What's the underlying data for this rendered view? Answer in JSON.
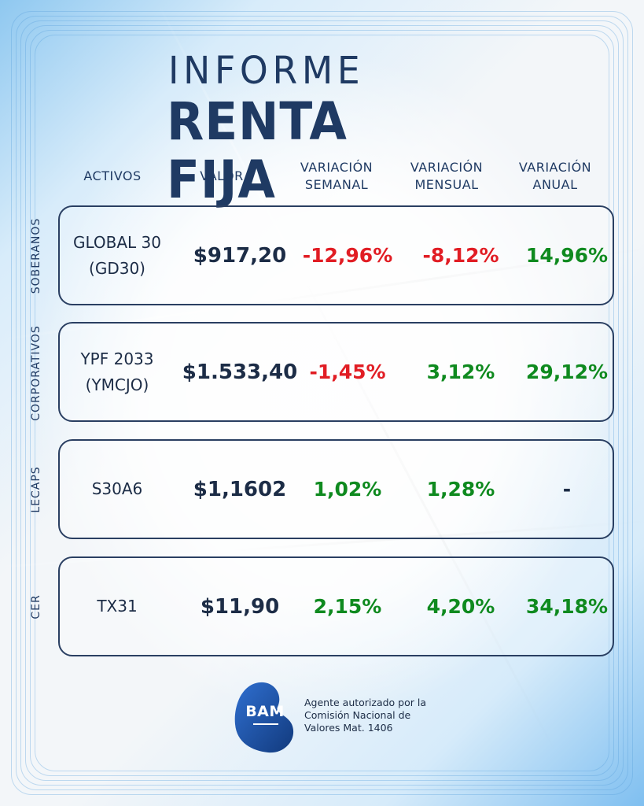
{
  "title": {
    "line1": "INFORME",
    "line2": "RENTA FIJA"
  },
  "headers": {
    "activos": "ACTIVOS",
    "valor": "VALOR",
    "semanal": [
      "VARIACIÓN",
      "SEMANAL"
    ],
    "mensual": [
      "VARIACIÓN",
      "MENSUAL"
    ],
    "anual": [
      "VARIACIÓN",
      "ANUAL"
    ]
  },
  "rows": [
    {
      "category": "SOBERANOS",
      "asset": [
        "GLOBAL 30",
        "(GD30)"
      ],
      "value": "$917,20",
      "semanal": "-12,96%",
      "mensual": "-8,12%",
      "anual": "14,96%"
    },
    {
      "category": "CORPORATIVOS",
      "asset": [
        "YPF 2033",
        "(YMCJO)"
      ],
      "value": "$1.533,40",
      "semanal": "-1,45%",
      "mensual": "3,12%",
      "anual": "29,12%"
    },
    {
      "category": "LECAPS",
      "asset": [
        "S30A6"
      ],
      "value": "$1,1602",
      "semanal": "1,02%",
      "mensual": "1,28%",
      "anual": "-"
    },
    {
      "category": "CER",
      "asset": [
        "TX31"
      ],
      "value": "$11,90",
      "semanal": "2,15%",
      "mensual": "4,20%",
      "anual": "34,18%"
    }
  ],
  "footer": {
    "logo": "BAM",
    "lines": [
      "Agente autorizado por la",
      "Comisión Nacional de",
      "Valores Mat. 1406"
    ]
  },
  "colors": {
    "navy": "#1f3a63",
    "negative": "#e11d24",
    "positive": "#0f8a1f",
    "logo_blue": "#1e4fa3"
  }
}
